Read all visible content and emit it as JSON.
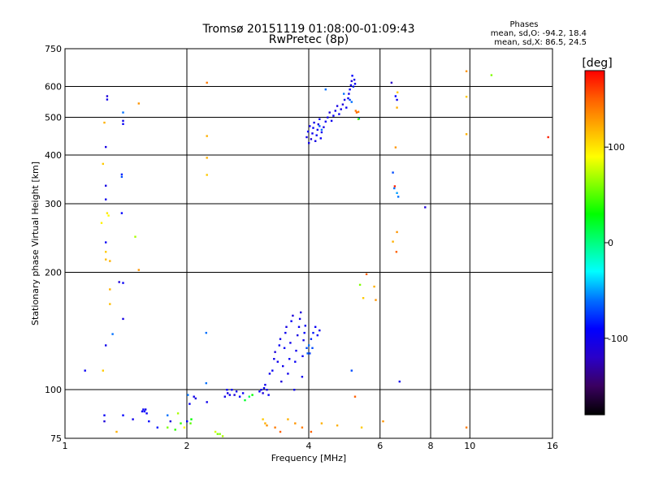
{
  "chart_data": {
    "type": "scatter",
    "title": "Tromsø 20151119 01:08:00-01:09:43",
    "subtitle": "RwPretec (8p)",
    "xlabel": "Frequency [MHz]",
    "ylabel": "Stationary phase Virtual Height [km]",
    "x_scale": "log",
    "y_scale": "log",
    "xlim": [
      1,
      16
    ],
    "ylim": [
      75,
      750
    ],
    "x_ticks": [
      1,
      2,
      4,
      6,
      8,
      10,
      16
    ],
    "x_tick_labels": [
      "1",
      "2",
      "4",
      "6",
      "8",
      "10",
      "16"
    ],
    "y_ticks": [
      75,
      100,
      200,
      300,
      400,
      500,
      600,
      750
    ],
    "y_tick_labels": [
      "75",
      "100",
      "200",
      "300",
      "400",
      "500",
      "600",
      "750"
    ],
    "grid": true,
    "stats": {
      "header": "Phases",
      "line1": "mean, sd,O: -94.2, 18.4",
      "line2": "mean, sd,X:  86.5, 24.5"
    },
    "colorbar": {
      "label": "[deg]",
      "range": [
        -180,
        180
      ],
      "ticks": [
        100,
        0,
        -100
      ],
      "tick_labels": [
        "100",
        "0",
        "-100"
      ],
      "colormap": [
        "#000000",
        "#3a0060",
        "#2a00c8",
        "#0000ff",
        "#0070ff",
        "#00ffff",
        "#00ff80",
        "#00ff00",
        "#80ff00",
        "#ffff00",
        "#ffb000",
        "#ff6000",
        "#ff0000"
      ]
    },
    "points": [
      [
        1.12,
        112,
        -95
      ],
      [
        1.27,
        556,
        -100
      ],
      [
        1.27,
        567,
        -110
      ],
      [
        1.26,
        420,
        -105
      ],
      [
        1.26,
        334,
        -105
      ],
      [
        1.26,
        308,
        -100
      ],
      [
        1.26,
        239,
        -95
      ],
      [
        1.26,
        130,
        -100
      ],
      [
        1.25,
        86,
        -95
      ],
      [
        1.25,
        83,
        -110
      ],
      [
        1.25,
        485,
        120
      ],
      [
        1.24,
        380,
        110
      ],
      [
        1.26,
        216,
        115
      ],
      [
        1.26,
        226,
        110
      ],
      [
        1.28,
        280,
        90
      ],
      [
        1.23,
        268,
        95
      ],
      [
        1.29,
        214,
        120
      ],
      [
        1.29,
        181,
        120
      ],
      [
        1.29,
        166,
        115
      ],
      [
        1.31,
        139,
        -60
      ],
      [
        1.27,
        284,
        100
      ],
      [
        1.24,
        112,
        110
      ],
      [
        1.36,
        189,
        -110
      ],
      [
        1.39,
        188,
        -95
      ],
      [
        1.39,
        152,
        -105
      ],
      [
        1.39,
        490,
        -100
      ],
      [
        1.39,
        481,
        -95
      ],
      [
        1.39,
        515,
        -60
      ],
      [
        1.38,
        357,
        -80
      ],
      [
        1.38,
        352,
        -70
      ],
      [
        1.38,
        284,
        -90
      ],
      [
        1.39,
        86,
        -90
      ],
      [
        1.34,
        78,
        120
      ],
      [
        1.49,
        247,
        70
      ],
      [
        1.52,
        543,
        130
      ],
      [
        1.52,
        203,
        130
      ],
      [
        1.47,
        84,
        -100
      ],
      [
        1.55,
        88,
        -100
      ],
      [
        1.56,
        89,
        -95
      ],
      [
        1.57,
        88,
        -90
      ],
      [
        1.58,
        89,
        -100
      ],
      [
        1.59,
        87,
        -95
      ],
      [
        1.61,
        83,
        -90
      ],
      [
        1.69,
        80,
        -85
      ],
      [
        1.79,
        80,
        60
      ],
      [
        1.79,
        86,
        -60
      ],
      [
        1.82,
        83,
        -110
      ],
      [
        1.87,
        79,
        40
      ],
      [
        1.9,
        87,
        70
      ],
      [
        1.93,
        82,
        40
      ],
      [
        1.97,
        80,
        90
      ],
      [
        2.0,
        83,
        -90
      ],
      [
        2.01,
        97,
        -60
      ],
      [
        2.03,
        92,
        -95
      ],
      [
        2.05,
        84,
        30
      ],
      [
        2.04,
        82,
        50
      ],
      [
        2.08,
        96,
        -100
      ],
      [
        2.1,
        95,
        -110
      ],
      [
        2.24,
        614,
        140
      ],
      [
        2.24,
        448,
        120
      ],
      [
        2.24,
        394,
        120
      ],
      [
        2.24,
        356,
        110
      ],
      [
        2.23,
        140,
        -60
      ],
      [
        2.23,
        104,
        -60
      ],
      [
        2.24,
        93,
        -100
      ],
      [
        2.35,
        78,
        80
      ],
      [
        2.38,
        77,
        60
      ],
      [
        2.41,
        77,
        60
      ],
      [
        2.45,
        76,
        70
      ],
      [
        2.48,
        96,
        -100
      ],
      [
        2.51,
        100,
        -95
      ],
      [
        2.52,
        98,
        -105
      ],
      [
        2.55,
        97,
        -100
      ],
      [
        2.58,
        100,
        -95
      ],
      [
        2.62,
        97,
        -110
      ],
      [
        2.65,
        99,
        -100
      ],
      [
        2.7,
        96,
        -90
      ],
      [
        2.75,
        98,
        -95
      ],
      [
        2.78,
        94,
        20
      ],
      [
        2.85,
        96,
        10
      ],
      [
        2.9,
        97,
        30
      ],
      [
        3.02,
        99,
        -95
      ],
      [
        3.05,
        100,
        -100
      ],
      [
        3.08,
        98,
        -110
      ],
      [
        3.1,
        101,
        -95
      ],
      [
        3.12,
        103,
        -100
      ],
      [
        3.15,
        100,
        -105
      ],
      [
        3.18,
        97,
        -95
      ],
      [
        3.2,
        110,
        -100
      ],
      [
        3.25,
        112,
        -95
      ],
      [
        3.28,
        120,
        -100
      ],
      [
        3.3,
        125,
        -110
      ],
      [
        3.35,
        118,
        -100
      ],
      [
        3.38,
        130,
        -95
      ],
      [
        3.4,
        135,
        -100
      ],
      [
        3.42,
        105,
        -110
      ],
      [
        3.45,
        115,
        -100
      ],
      [
        3.48,
        128,
        -95
      ],
      [
        3.5,
        140,
        -100
      ],
      [
        3.52,
        145,
        -105
      ],
      [
        3.55,
        110,
        -100
      ],
      [
        3.58,
        120,
        -95
      ],
      [
        3.6,
        132,
        -100
      ],
      [
        3.62,
        150,
        -95
      ],
      [
        3.65,
        155,
        -110
      ],
      [
        3.68,
        100,
        -100
      ],
      [
        3.7,
        118,
        -95
      ],
      [
        3.72,
        126,
        -100
      ],
      [
        3.75,
        138,
        -105
      ],
      [
        3.78,
        145,
        -95
      ],
      [
        3.8,
        152,
        -100
      ],
      [
        3.82,
        158,
        -110
      ],
      [
        3.85,
        108,
        -100
      ],
      [
        3.86,
        122,
        -95
      ],
      [
        3.88,
        134,
        -100
      ],
      [
        3.9,
        140,
        -90
      ],
      [
        3.92,
        146,
        -95
      ],
      [
        3.95,
        128,
        -70
      ],
      [
        3.97,
        124,
        -65
      ],
      [
        4.0,
        130,
        -60
      ],
      [
        4.02,
        124,
        -75
      ],
      [
        4.05,
        135,
        -80
      ],
      [
        4.08,
        128,
        -70
      ],
      [
        4.1,
        140,
        -85
      ],
      [
        4.15,
        145,
        -95
      ],
      [
        4.2,
        138,
        -90
      ],
      [
        4.25,
        142,
        -100
      ],
      [
        3.3,
        80,
        140
      ],
      [
        3.4,
        78,
        150
      ],
      [
        3.55,
        84,
        120
      ],
      [
        3.7,
        82,
        130
      ],
      [
        3.85,
        80,
        140
      ],
      [
        4.05,
        78,
        150
      ],
      [
        4.3,
        82,
        120
      ],
      [
        3.08,
        84,
        110
      ],
      [
        3.12,
        82,
        120
      ],
      [
        3.15,
        81,
        130
      ],
      [
        4.0,
        430,
        -100
      ],
      [
        3.95,
        445,
        -105
      ],
      [
        3.98,
        460,
        -95
      ],
      [
        4.02,
        475,
        -100
      ],
      [
        4.05,
        440,
        -110
      ],
      [
        4.08,
        455,
        -100
      ],
      [
        4.1,
        470,
        -95
      ],
      [
        4.12,
        485,
        -100
      ],
      [
        4.15,
        435,
        -105
      ],
      [
        4.18,
        450,
        -95
      ],
      [
        4.2,
        465,
        -100
      ],
      [
        4.22,
        480,
        -110
      ],
      [
        4.25,
        495,
        -100
      ],
      [
        4.28,
        442,
        -95
      ],
      [
        4.3,
        458,
        -100
      ],
      [
        4.35,
        472,
        -105
      ],
      [
        4.4,
        488,
        -95
      ],
      [
        4.45,
        500,
        -100
      ],
      [
        4.5,
        515,
        -110
      ],
      [
        4.55,
        490,
        -100
      ],
      [
        4.6,
        505,
        -95
      ],
      [
        4.65,
        520,
        -100
      ],
      [
        4.7,
        535,
        -105
      ],
      [
        4.75,
        510,
        -95
      ],
      [
        4.8,
        525,
        -100
      ],
      [
        4.85,
        540,
        -110
      ],
      [
        4.9,
        555,
        -100
      ],
      [
        4.95,
        530,
        -95
      ],
      [
        5.0,
        560,
        -100
      ],
      [
        5.02,
        575,
        -105
      ],
      [
        5.05,
        590,
        -95
      ],
      [
        5.08,
        605,
        -100
      ],
      [
        5.1,
        620,
        -110
      ],
      [
        5.12,
        640,
        -90
      ],
      [
        5.15,
        600,
        -85
      ],
      [
        5.18,
        625,
        -100
      ],
      [
        5.2,
        610,
        -95
      ],
      [
        5.1,
        548,
        -60
      ],
      [
        5.05,
        555,
        -70
      ],
      [
        4.88,
        575,
        -60
      ],
      [
        4.4,
        590,
        -60
      ],
      [
        4.3,
        465,
        -60
      ],
      [
        4.25,
        475,
        -65
      ],
      [
        5.22,
        520,
        140
      ],
      [
        5.25,
        515,
        150
      ],
      [
        5.3,
        517,
        140
      ],
      [
        5.32,
        497,
        -60
      ],
      [
        5.3,
        495,
        50
      ],
      [
        5.35,
        186,
        60
      ],
      [
        5.55,
        198,
        150
      ],
      [
        5.45,
        172,
        110
      ],
      [
        5.8,
        184,
        120
      ],
      [
        5.85,
        170,
        130
      ],
      [
        5.1,
        112,
        -70
      ],
      [
        5.2,
        96,
        150
      ],
      [
        5.4,
        80,
        110
      ],
      [
        4.7,
        81,
        120
      ],
      [
        6.1,
        83,
        130
      ],
      [
        6.4,
        614,
        -120
      ],
      [
        6.55,
        567,
        -90
      ],
      [
        6.6,
        555,
        -100
      ],
      [
        6.62,
        580,
        110
      ],
      [
        6.6,
        530,
        120
      ],
      [
        6.45,
        361,
        -70
      ],
      [
        6.5,
        329,
        -60
      ],
      [
        6.52,
        333,
        170
      ],
      [
        6.6,
        320,
        -50
      ],
      [
        6.65,
        313,
        -60
      ],
      [
        6.55,
        419,
        130
      ],
      [
        6.6,
        254,
        130
      ],
      [
        6.45,
        240,
        120
      ],
      [
        6.58,
        226,
        150
      ],
      [
        6.7,
        105,
        -100
      ],
      [
        7.75,
        294,
        -110
      ],
      [
        9.8,
        657,
        130
      ],
      [
        9.8,
        565,
        110
      ],
      [
        9.8,
        453,
        120
      ],
      [
        9.8,
        80,
        140
      ],
      [
        11.3,
        642,
        60
      ],
      [
        15.6,
        445,
        170
      ]
    ]
  }
}
